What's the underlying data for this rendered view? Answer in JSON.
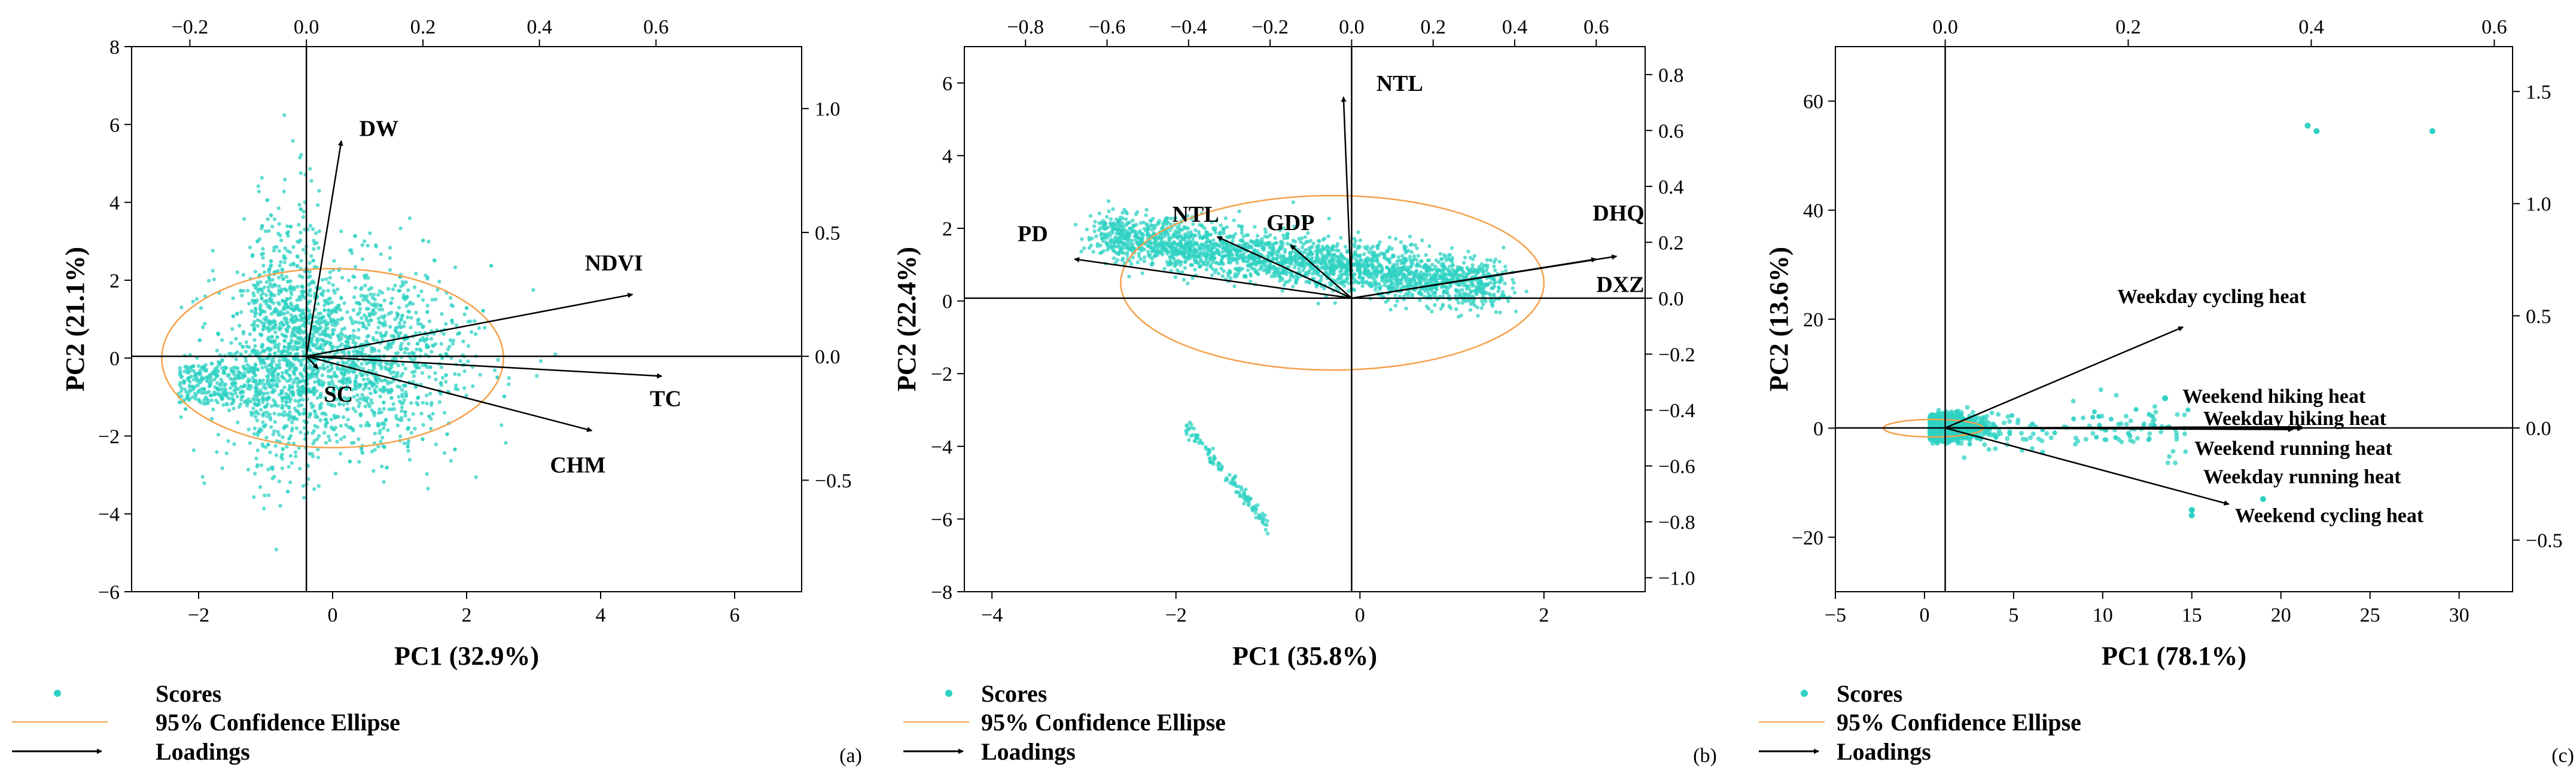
{
  "colors": {
    "score": "#2fd1c3",
    "ellipse": "#f5a04a",
    "axis": "#000000"
  },
  "legend": {
    "scores": "Scores",
    "ellipse": "95% Confidence Ellipse",
    "loadings": "Loadings"
  },
  "chart_data": [
    {
      "type": "scatter",
      "panel_label": "(a)",
      "xlabel": "PC1  (32.9%)",
      "ylabel": "PC2  (21.1%)",
      "xlim": [
        -3,
        7
      ],
      "ylim": [
        -6,
        8
      ],
      "x_ticks": [
        -2,
        0,
        2,
        4,
        6
      ],
      "y_ticks": [
        -6,
        -4,
        -2,
        0,
        2,
        4,
        6,
        8
      ],
      "top_lim": [
        -0.3,
        0.85
      ],
      "top_ticks": [
        -0.2,
        0.0,
        0.2,
        0.4,
        0.6
      ],
      "right_lim": [
        -0.95,
        1.25
      ],
      "right_ticks": [
        -0.5,
        0.0,
        0.5,
        1.0
      ],
      "loadings": [
        {
          "name": "DW",
          "x": 0.06,
          "y": 0.87
        },
        {
          "name": "NDVI",
          "x": 0.56,
          "y": 0.25
        },
        {
          "name": "TC",
          "x": 0.61,
          "y": -0.08
        },
        {
          "name": "CHM",
          "x": 0.49,
          "y": -0.3
        },
        {
          "name": "SC",
          "x": 0.02,
          "y": -0.05
        }
      ],
      "ellipse": {
        "cx": 0,
        "cy": 0,
        "rx": 2.55,
        "ry": 2.3,
        "angle_deg": 0
      }
    },
    {
      "type": "scatter",
      "panel_label": "(b)",
      "xlabel": "PC1  (35.8%)",
      "ylabel": "PC2  (22.4%)",
      "xlim": [
        -4.3,
        3.1
      ],
      "ylim": [
        -8,
        7
      ],
      "x_ticks": [
        -4,
        -2,
        0,
        2
      ],
      "y_ticks": [
        -8,
        -6,
        -4,
        -2,
        0,
        2,
        4,
        6
      ],
      "top_lim": [
        -0.95,
        0.72
      ],
      "top_ticks": [
        -0.8,
        -0.6,
        -0.4,
        -0.2,
        0.0,
        0.2,
        0.4,
        0.6
      ],
      "right_lim": [
        -1.05,
        0.9
      ],
      "right_ticks": [
        -1.0,
        -0.8,
        -0.6,
        -0.4,
        -0.2,
        0.0,
        0.2,
        0.4,
        0.6,
        0.8
      ],
      "loadings": [
        {
          "name": "NTL",
          "x": -0.02,
          "y": 0.72
        },
        {
          "name": "DHQ",
          "x": 0.65,
          "y": 0.15
        },
        {
          "name": "DXZ",
          "x": 0.6,
          "y": 0.14
        },
        {
          "name": "GDP",
          "x": -0.15,
          "y": 0.19
        },
        {
          "name": "NTL",
          "x": -0.33,
          "y": 0.22
        },
        {
          "name": "PD",
          "x": -0.68,
          "y": 0.14
        }
      ],
      "ellipse": {
        "cx": -0.3,
        "cy": 0.5,
        "rx": 2.3,
        "ry": 2.4,
        "angle_deg": 0
      }
    },
    {
      "type": "scatter",
      "panel_label": "(c)",
      "xlabel": "PC1  (78.1%)",
      "ylabel": "PC2  (13.6%)",
      "xlim": [
        -5,
        33
      ],
      "ylim": [
        -30,
        70
      ],
      "x_ticks": [
        -5,
        0,
        5,
        10,
        15,
        20,
        25,
        30
      ],
      "y_ticks": [
        -20,
        0,
        20,
        40,
        60
      ],
      "top_lim": [
        -0.12,
        0.62
      ],
      "top_ticks": [
        0.0,
        0.2,
        0.4,
        0.6
      ],
      "right_lim": [
        -0.73,
        1.7
      ],
      "right_ticks": [
        -0.5,
        0.0,
        0.5,
        1.0,
        1.5
      ],
      "loadings": [
        {
          "name": "Weekday cycling heat",
          "x": 0.26,
          "y": 0.45
        },
        {
          "name": "Weekend hiking heat",
          "x": 0.39,
          "y": 0.005
        },
        {
          "name": "Weekday hiking heat",
          "x": 0.38,
          "y": 0.0
        },
        {
          "name": "Weekend running heat",
          "x": 0.39,
          "y": -0.003
        },
        {
          "name": "Weekday running heat",
          "x": 0.38,
          "y": -0.007
        },
        {
          "name": "Weekend cycling heat",
          "x": 0.31,
          "y": -0.34
        }
      ],
      "ellipse": {
        "cx": 0.5,
        "cy": 0,
        "rx": 2.8,
        "ry": 1.6,
        "angle_deg": 0
      }
    }
  ]
}
